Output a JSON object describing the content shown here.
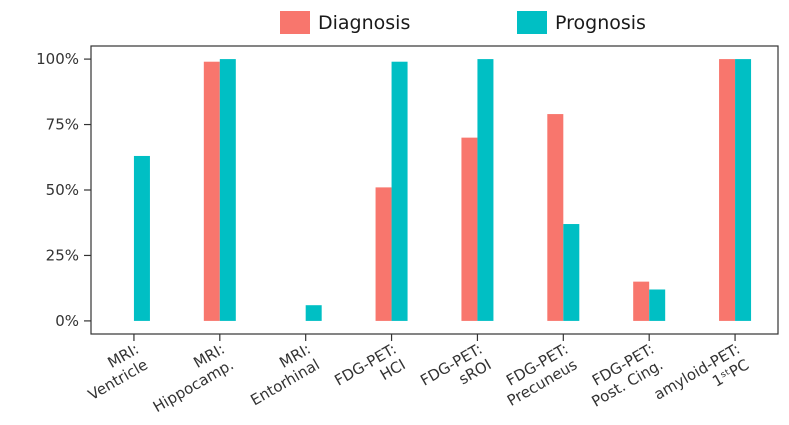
{
  "chart_data": {
    "type": "bar",
    "categories": [
      [
        "MRI:",
        "Ventricle"
      ],
      [
        "MRI:",
        "Hippocamp."
      ],
      [
        "MRI:",
        "Entorhinal"
      ],
      [
        "FDG-PET:",
        "HCI"
      ],
      [
        "FDG-PET:",
        "sROI"
      ],
      [
        "FDG-PET:",
        "Precuneus"
      ],
      [
        "FDG-PET:",
        "Post. Cing."
      ],
      [
        "amyloid-PET:",
        "1ˢᵗPC"
      ]
    ],
    "series": [
      {
        "name": "Diagnosis",
        "color": "#f8766d",
        "values": [
          0,
          99,
          0,
          51,
          70,
          79,
          15,
          100
        ]
      },
      {
        "name": "Prognosis",
        "color": "#00bfc4",
        "values": [
          63,
          100,
          6,
          99,
          100,
          37,
          12,
          100
        ]
      }
    ],
    "yticks": [
      "0%",
      "25%",
      "50%",
      "75%",
      "100%"
    ],
    "ytick_values": [
      0,
      25,
      50,
      75,
      100
    ],
    "ylim": [
      -5,
      105
    ],
    "legend_position": "top",
    "grid": false
  }
}
